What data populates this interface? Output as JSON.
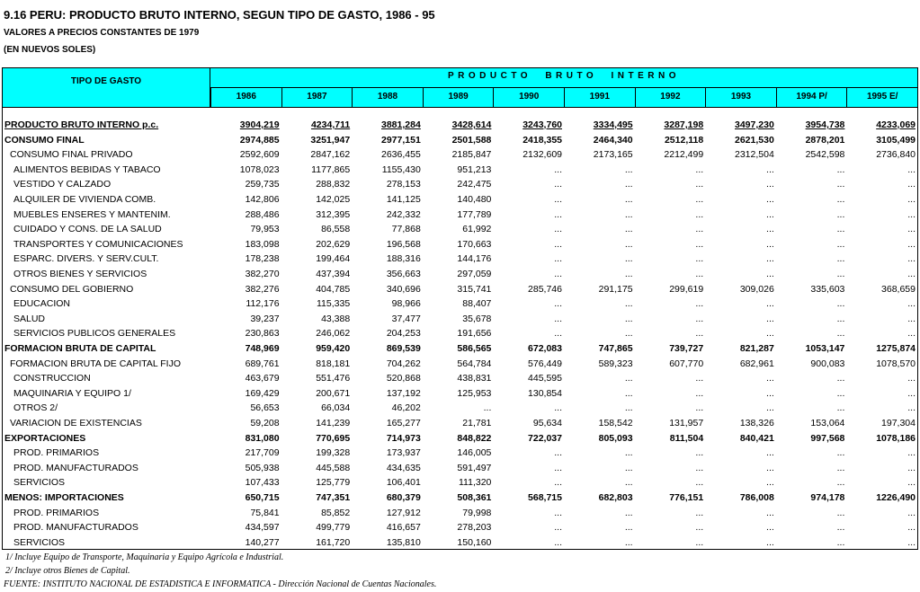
{
  "header": {
    "title": "9.16 PERU: PRODUCTO BRUTO INTERNO, SEGUN TIPO DE GASTO, 1986 - 95",
    "subtitle": "VALORES A PRECIOS CONSTANTES DE 1979",
    "unit": "(EN NUEVOS SOLES)"
  },
  "table": {
    "label_header": "TIPO DE GASTO",
    "group_header": "PRODUCTO BRUTO INTERNO",
    "years": [
      "1986",
      "1987",
      "1988",
      "1989",
      "1990",
      "1991",
      "1992",
      "1993",
      "1994 P/",
      "1995 E/"
    ],
    "rows": [
      [
        "PRODUCTO BRUTO INTERNO p.c.",
        "3904,219",
        "4234,711",
        "3881,284",
        "3428,614",
        "3243,760",
        "3334,495",
        "3287,198",
        "3497,230",
        "3954,738",
        "4233,069"
      ],
      [
        "CONSUMO FINAL",
        "2974,885",
        "3251,947",
        "2977,151",
        "2501,588",
        "2418,355",
        "2464,340",
        "2512,118",
        "2621,530",
        "2878,201",
        "3105,499"
      ],
      [
        "CONSUMO FINAL PRIVADO",
        "2592,609",
        "2847,162",
        "2636,455",
        "2185,847",
        "2132,609",
        "2173,165",
        "2212,499",
        "2312,504",
        "2542,598",
        "2736,840"
      ],
      [
        "ALIMENTOS BEBIDAS Y TABACO",
        "1078,023",
        "1177,865",
        "1155,430",
        "951,213",
        "...",
        "...",
        "...",
        "...",
        "...",
        "..."
      ],
      [
        "VESTIDO Y CALZADO",
        "259,735",
        "288,832",
        "278,153",
        "242,475",
        "...",
        "...",
        "...",
        "...",
        "...",
        "..."
      ],
      [
        "ALQUILER DE VIVIENDA COMB.",
        "142,806",
        "142,025",
        "141,125",
        "140,480",
        "...",
        "...",
        "...",
        "...",
        "...",
        "..."
      ],
      [
        "MUEBLES ENSERES Y MANTENIM.",
        "288,486",
        "312,395",
        "242,332",
        "177,789",
        "...",
        "...",
        "...",
        "...",
        "...",
        "..."
      ],
      [
        "CUIDADO Y CONS. DE LA SALUD",
        "79,953",
        "86,558",
        "77,868",
        "61,992",
        "...",
        "...",
        "...",
        "...",
        "...",
        "..."
      ],
      [
        "TRANSPORTES Y COMUNICACIONES",
        "183,098",
        "202,629",
        "196,568",
        "170,663",
        "...",
        "...",
        "...",
        "...",
        "...",
        "..."
      ],
      [
        "ESPARC. DIVERS. Y SERV.CULT.",
        "178,238",
        "199,464",
        "188,316",
        "144,176",
        "...",
        "...",
        "...",
        "...",
        "...",
        "..."
      ],
      [
        "OTROS BIENES Y SERVICIOS",
        "382,270",
        "437,394",
        "356,663",
        "297,059",
        "...",
        "...",
        "...",
        "...",
        "...",
        "..."
      ],
      [
        "CONSUMO DEL GOBIERNO",
        "382,276",
        "404,785",
        "340,696",
        "315,741",
        "285,746",
        "291,175",
        "299,619",
        "309,026",
        "335,603",
        "368,659"
      ],
      [
        "EDUCACION",
        "112,176",
        "115,335",
        "98,966",
        "88,407",
        "...",
        "...",
        "...",
        "...",
        "...",
        "..."
      ],
      [
        "SALUD",
        "39,237",
        "43,388",
        "37,477",
        "35,678",
        "...",
        "...",
        "...",
        "...",
        "...",
        "..."
      ],
      [
        "SERVICIOS PUBLICOS GENERALES",
        "230,863",
        "246,062",
        "204,253",
        "191,656",
        "...",
        "...",
        "...",
        "...",
        "...",
        "..."
      ],
      [
        "FORMACION BRUTA DE CAPITAL",
        "748,969",
        "959,420",
        "869,539",
        "586,565",
        "672,083",
        "747,865",
        "739,727",
        "821,287",
        "1053,147",
        "1275,874"
      ],
      [
        "FORMACION BRUTA DE CAPITAL FIJO",
        "689,761",
        "818,181",
        "704,262",
        "564,784",
        "576,449",
        "589,323",
        "607,770",
        "682,961",
        "900,083",
        "1078,570"
      ],
      [
        "CONSTRUCCION",
        "463,679",
        "551,476",
        "520,868",
        "438,831",
        "445,595",
        "...",
        "...",
        "...",
        "...",
        "..."
      ],
      [
        "MAQUINARIA Y EQUIPO 1/",
        "169,429",
        "200,671",
        "137,192",
        "125,953",
        "130,854",
        "...",
        "...",
        "...",
        "...",
        "..."
      ],
      [
        "OTROS 2/",
        "56,653",
        "66,034",
        "46,202",
        "...",
        "...",
        "...",
        "...",
        "...",
        "...",
        "..."
      ],
      [
        "VARIACION DE EXISTENCIAS",
        "59,208",
        "141,239",
        "165,277",
        "21,781",
        "95,634",
        "158,542",
        "131,957",
        "138,326",
        "153,064",
        "197,304"
      ],
      [
        "EXPORTACIONES",
        "831,080",
        "770,695",
        "714,973",
        "848,822",
        "722,037",
        "805,093",
        "811,504",
        "840,421",
        "997,568",
        "1078,186"
      ],
      [
        "PROD. PRIMARIOS",
        "217,709",
        "199,328",
        "173,937",
        "146,005",
        "...",
        "...",
        "...",
        "...",
        "...",
        "..."
      ],
      [
        "PROD. MANUFACTURADOS",
        "505,938",
        "445,588",
        "434,635",
        "591,497",
        "...",
        "...",
        "...",
        "...",
        "...",
        "..."
      ],
      [
        "SERVICIOS",
        "107,433",
        "125,779",
        "106,401",
        "111,320",
        "...",
        "...",
        "...",
        "...",
        "...",
        "..."
      ],
      [
        "MENOS: IMPORTACIONES",
        "650,715",
        "747,351",
        "680,379",
        "508,361",
        "568,715",
        "682,803",
        "776,151",
        "786,008",
        "974,178",
        "1226,490"
      ],
      [
        "PROD. PRIMARIOS",
        "75,841",
        "85,852",
        "127,912",
        "79,998",
        "...",
        "...",
        "...",
        "...",
        "...",
        "..."
      ],
      [
        "PROD. MANUFACTURADOS",
        "434,597",
        "499,779",
        "416,657",
        "278,203",
        "...",
        "...",
        "...",
        "...",
        "...",
        "..."
      ],
      [
        "SERVICIOS",
        "140,277",
        "161,720",
        "135,810",
        "150,160",
        "...",
        "...",
        "...",
        "...",
        "...",
        "..."
      ]
    ]
  },
  "footnotes": [
    "1/ Incluye Equipo de Transporte, Maquinaria y Equipo Agrícola e Industrial.",
    "2/ Incluye otros Bienes de Capital.",
    "FUENTE: INSTITUTO NACIONAL DE ESTADISTICA E INFORMATICA - Dirección Nacional de Cuentas Nacionales."
  ]
}
